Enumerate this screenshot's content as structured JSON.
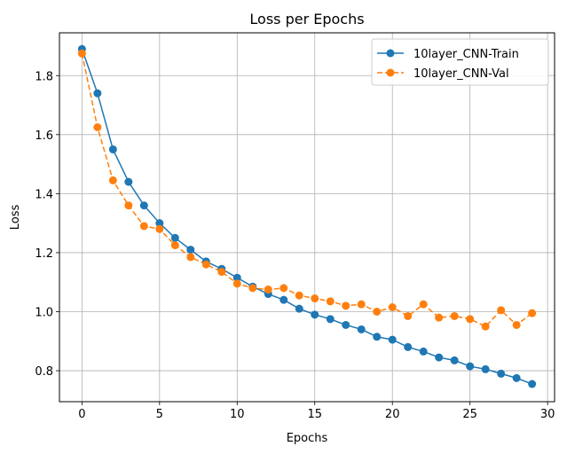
{
  "chart_data": {
    "type": "line",
    "title": "Loss per Epochs",
    "xlabel": "Epochs",
    "ylabel": "Loss",
    "xlim": [
      -1.45,
      30.45
    ],
    "ylim": [
      0.695,
      1.945
    ],
    "xticks": [
      0,
      5,
      10,
      15,
      20,
      25,
      30
    ],
    "yticks": [
      0.8,
      1.0,
      1.2,
      1.4,
      1.6,
      1.8
    ],
    "grid": true,
    "legend_position": "top-right",
    "x": [
      0,
      1,
      2,
      3,
      4,
      5,
      6,
      7,
      8,
      9,
      10,
      11,
      12,
      13,
      14,
      15,
      16,
      17,
      18,
      19,
      20,
      21,
      22,
      23,
      24,
      25,
      26,
      27,
      28,
      29
    ],
    "series": [
      {
        "name": "10layer_CNN-Train",
        "color": "#1f77b4",
        "linestyle": "solid",
        "values": [
          1.89,
          1.74,
          1.55,
          1.44,
          1.36,
          1.3,
          1.25,
          1.21,
          1.17,
          1.145,
          1.115,
          1.085,
          1.06,
          1.04,
          1.01,
          0.99,
          0.975,
          0.955,
          0.94,
          0.915,
          0.905,
          0.88,
          0.865,
          0.845,
          0.835,
          0.815,
          0.805,
          0.79,
          0.775,
          0.755
        ]
      },
      {
        "name": "10layer_CNN-Val",
        "color": "#ff7f0e",
        "linestyle": "dashed",
        "values": [
          1.875,
          1.625,
          1.445,
          1.36,
          1.29,
          1.28,
          1.225,
          1.185,
          1.16,
          1.135,
          1.095,
          1.08,
          1.075,
          1.08,
          1.055,
          1.045,
          1.035,
          1.02,
          1.025,
          1.0,
          1.015,
          0.985,
          1.025,
          0.98,
          0.985,
          0.975,
          0.95,
          1.005,
          0.955,
          0.995
        ]
      }
    ]
  }
}
